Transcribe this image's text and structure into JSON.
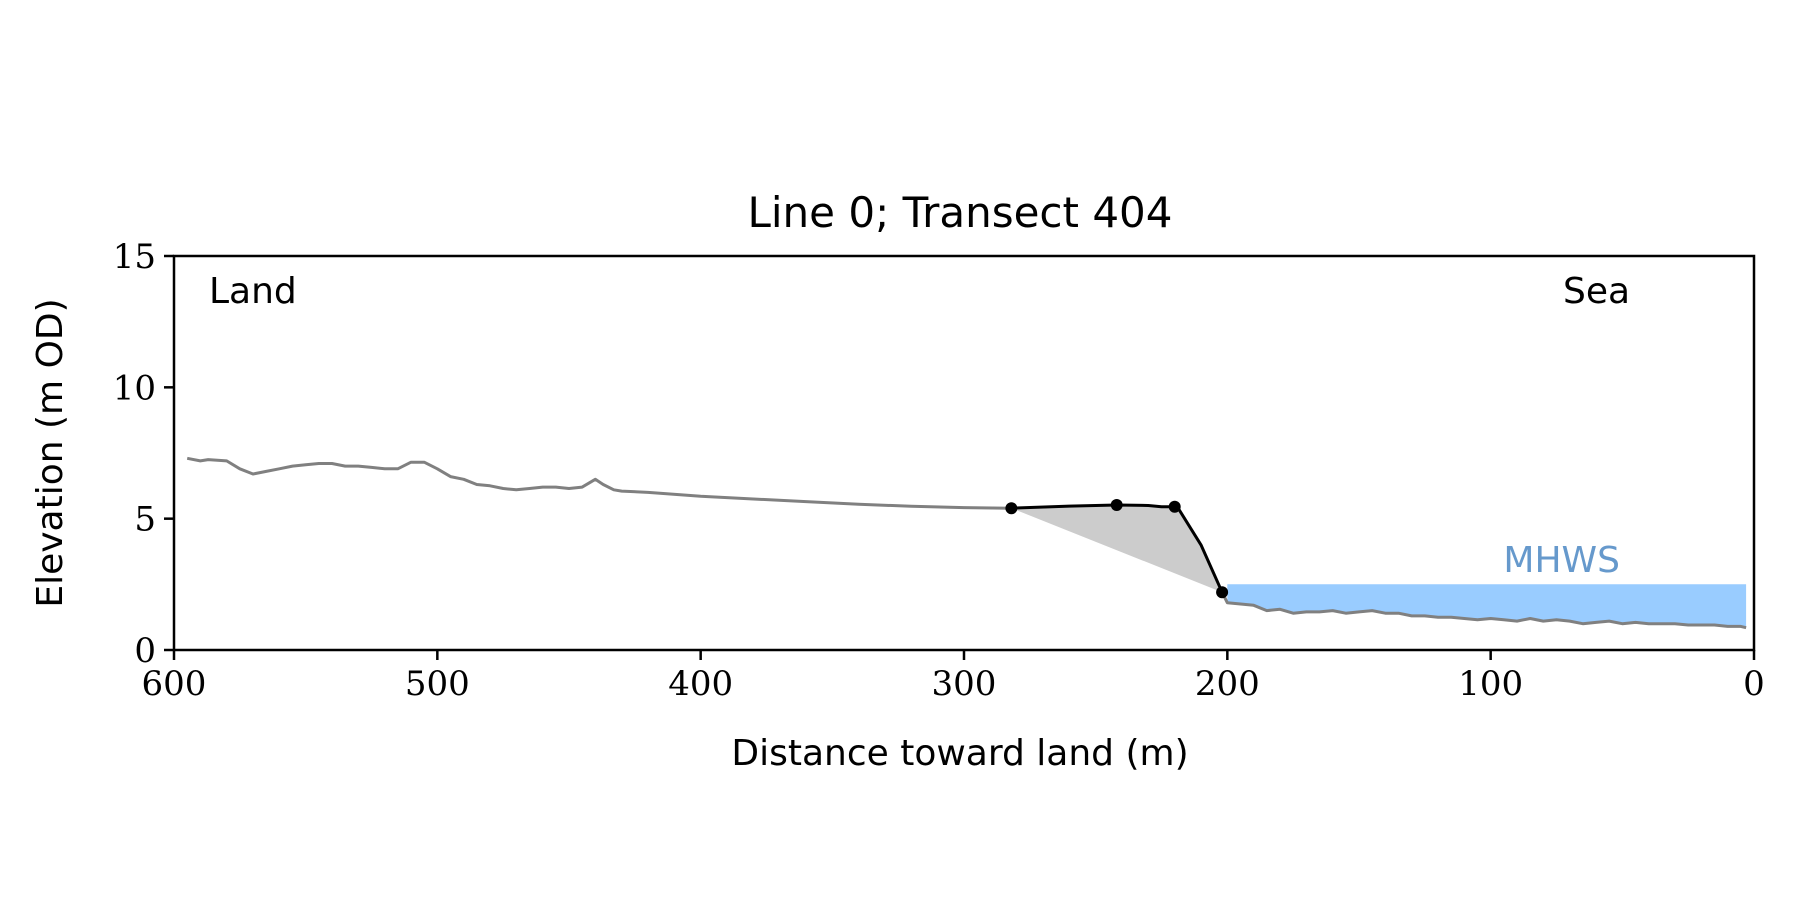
{
  "chart_data": {
    "type": "line",
    "title": "Line 0; Transect 404",
    "xlabel": "Distance toward land (m)",
    "ylabel": "Elevation (m OD)",
    "xlim": [
      600,
      0
    ],
    "ylim": [
      0,
      15
    ],
    "x_ticks": [
      600,
      500,
      400,
      300,
      200,
      100,
      0
    ],
    "y_ticks": [
      0,
      5,
      10,
      15
    ],
    "x_tick_labels": [
      "600",
      "500",
      "400",
      "300",
      "200",
      "100",
      "0"
    ],
    "y_tick_labels": [
      "0",
      "5",
      "10",
      "15"
    ],
    "grid": false,
    "annotations": {
      "land": "Land",
      "sea": "Sea",
      "mhws": "MHWS"
    },
    "mhws_level": 2.5,
    "mhws_x_range": [
      200,
      3
    ],
    "colors": {
      "profile": "#808080",
      "cliff": "#000000",
      "fill": "#cccccc",
      "water": "#99ccff",
      "mhws_text": "#6699cc"
    },
    "series": [
      {
        "x": [
          595,
          590,
          587,
          580,
          575,
          570,
          565,
          560,
          555,
          550,
          545,
          540,
          535,
          530,
          525,
          520,
          515,
          510,
          505,
          500,
          495,
          490,
          485,
          480,
          475,
          470,
          465,
          460,
          455,
          450,
          445,
          440,
          437,
          433,
          430,
          420,
          400,
          380,
          360,
          340,
          320,
          300,
          282
        ],
        "y": [
          7.3,
          7.2,
          7.25,
          7.2,
          6.9,
          6.7,
          6.8,
          6.9,
          7.0,
          7.05,
          7.1,
          7.1,
          7.0,
          7.0,
          6.95,
          6.9,
          6.9,
          7.15,
          7.15,
          6.9,
          6.6,
          6.5,
          6.3,
          6.25,
          6.15,
          6.1,
          6.15,
          6.2,
          6.2,
          6.15,
          6.2,
          6.5,
          6.3,
          6.1,
          6.05,
          6.0,
          5.85,
          5.75,
          5.65,
          5.55,
          5.47,
          5.42,
          5.4
        ]
      },
      {
        "x": [
          282,
          260,
          242,
          230,
          225,
          219,
          210,
          202
        ],
        "y": [
          5.4,
          5.48,
          5.52,
          5.5,
          5.45,
          5.45,
          4.0,
          2.2
        ]
      },
      {
        "x": [
          202,
          200,
          195,
          190,
          185,
          180,
          175,
          170,
          165,
          160,
          155,
          150,
          145,
          140,
          135,
          130,
          125,
          120,
          115,
          110,
          105,
          100,
          95,
          90,
          85,
          80,
          75,
          70,
          65,
          60,
          55,
          50,
          45,
          40,
          35,
          30,
          25,
          20,
          15,
          10,
          5,
          3
        ],
        "y": [
          2.2,
          1.8,
          1.75,
          1.7,
          1.5,
          1.55,
          1.4,
          1.45,
          1.45,
          1.5,
          1.4,
          1.45,
          1.5,
          1.4,
          1.4,
          1.3,
          1.3,
          1.25,
          1.25,
          1.2,
          1.15,
          1.2,
          1.15,
          1.1,
          1.2,
          1.1,
          1.15,
          1.1,
          1.0,
          1.05,
          1.1,
          1.0,
          1.05,
          1.0,
          1.0,
          1.0,
          0.95,
          0.95,
          0.95,
          0.9,
          0.9,
          0.85
        ]
      }
    ],
    "markers": {
      "x": [
        282,
        242,
        220,
        202
      ],
      "y": [
        5.4,
        5.52,
        5.45,
        2.2
      ]
    }
  }
}
